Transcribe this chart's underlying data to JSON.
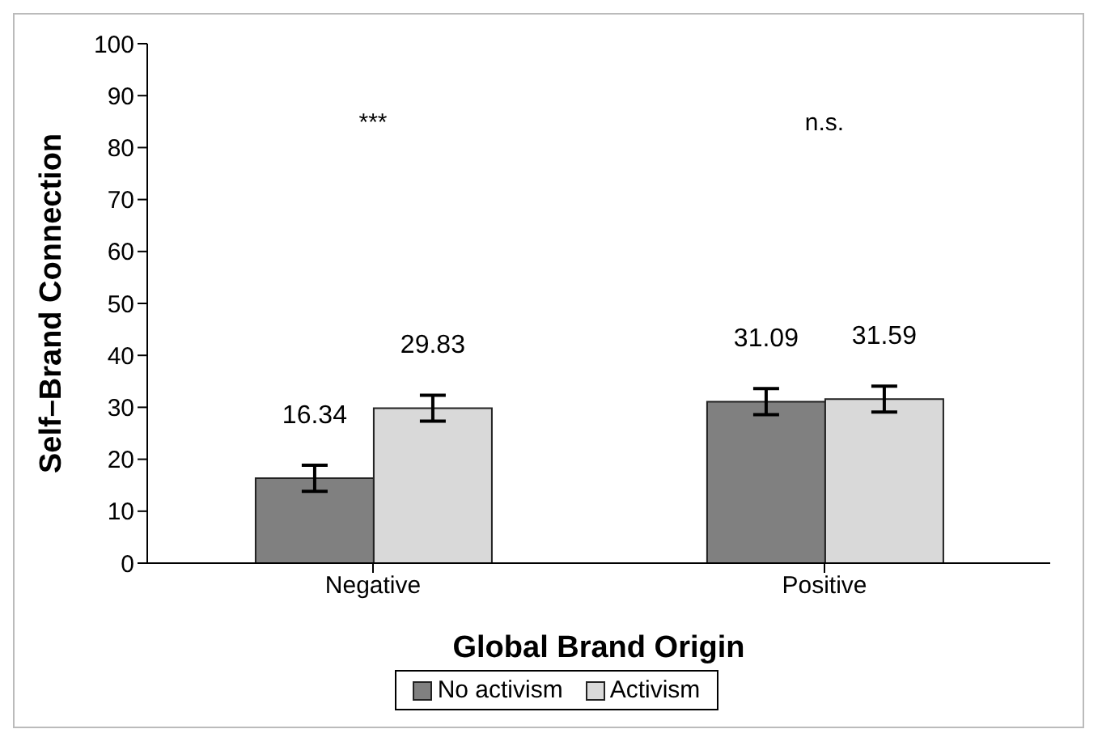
{
  "chart_data": {
    "type": "bar",
    "xlabel": "Global Brand Origin",
    "ylabel": "Self–Brand Connection",
    "categories": [
      "Negative",
      "Positive"
    ],
    "series": [
      {
        "name": "No activism",
        "color": "#808080",
        "values": [
          16.34,
          31.09
        ],
        "errors": [
          2.5,
          2.5
        ]
      },
      {
        "name": "Activism",
        "color": "#d9d9d9",
        "values": [
          29.83,
          31.59
        ],
        "errors": [
          2.5,
          2.5
        ]
      }
    ],
    "ylim": [
      0,
      100
    ],
    "yticks": [
      0,
      10,
      20,
      30,
      40,
      50,
      60,
      70,
      80,
      90,
      100
    ],
    "data_labels": true,
    "grid": false,
    "legend": "bottom",
    "annotations": [
      "***",
      "n.s."
    ]
  }
}
